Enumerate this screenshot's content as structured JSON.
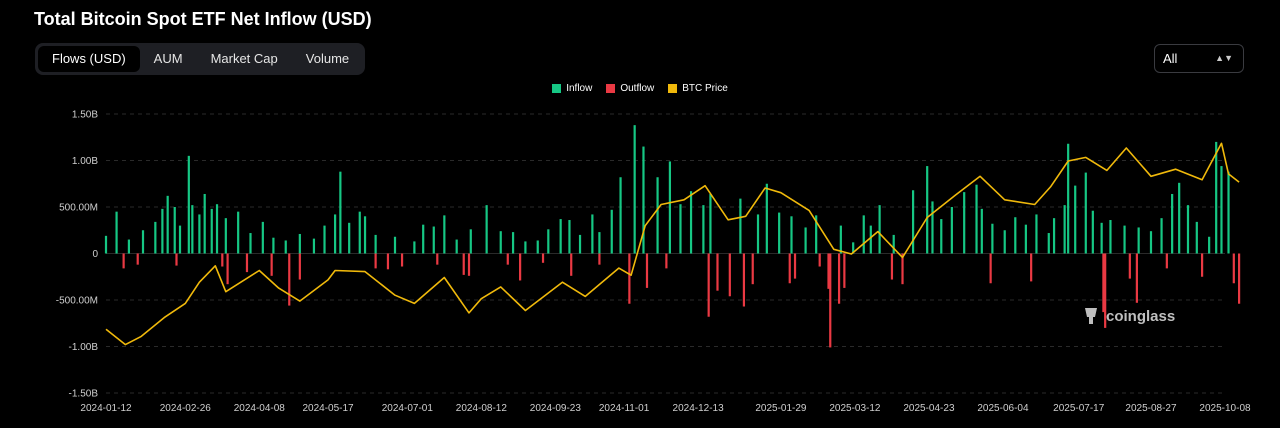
{
  "header": {
    "title": "Total Bitcoin Spot ETF Net Inflow (USD)"
  },
  "tabs": [
    {
      "label": "Flows (USD)",
      "active": true
    },
    {
      "label": "AUM",
      "active": false
    },
    {
      "label": "Market Cap",
      "active": false
    },
    {
      "label": "Volume",
      "active": false
    }
  ],
  "range_select": {
    "value": "All",
    "icon": "chevron-up-down-icon"
  },
  "watermark": {
    "text": "coinglass",
    "icon": "coinglass-logo-icon"
  },
  "colors": {
    "inflow": "#16c784",
    "outflow": "#ea3943",
    "btc_price": "#f0b90b",
    "grid": "#2a2a2a"
  },
  "chart_data": {
    "type": "bar",
    "title": "Total Bitcoin Spot ETF Net Inflow (USD)",
    "legend": [
      "Inflow",
      "Outflow",
      "BTC Price"
    ],
    "legend_placement": "top-center",
    "y_ticks": [
      "1.50B",
      "1.00B",
      "500.00M",
      "0",
      "-500.00M",
      "-1.00B",
      "-1.50B"
    ],
    "y_tick_values": [
      1500,
      1000,
      500,
      0,
      -500,
      -1000,
      -1500
    ],
    "ylim": [
      -1500,
      1500
    ],
    "y_unit": "millions USD",
    "x_ticks": [
      "2024-01-12",
      "2024-02-26",
      "2024-04-08",
      "2024-05-17",
      "2024-07-01",
      "2024-08-12",
      "2024-09-23",
      "2024-11-01",
      "2024-12-13",
      "2025-01-29",
      "2025-03-12",
      "2025-04-23",
      "2025-06-04",
      "2025-07-17",
      "2025-08-27",
      "2025-10-08"
    ],
    "grid": "horizontal dashed",
    "series": [
      {
        "name": "Inflow",
        "note": "approximate daily net inflow peaks, USD millions",
        "x": [
          "2024-01-12",
          "2024-01-18",
          "2024-01-25",
          "2024-02-02",
          "2024-02-09",
          "2024-02-13",
          "2024-02-16",
          "2024-02-20",
          "2024-02-23",
          "2024-02-28",
          "2024-03-01",
          "2024-03-05",
          "2024-03-08",
          "2024-03-12",
          "2024-03-15",
          "2024-03-20",
          "2024-03-27",
          "2024-04-03",
          "2024-04-10",
          "2024-04-16",
          "2024-04-23",
          "2024-05-01",
          "2024-05-09",
          "2024-05-15",
          "2024-05-21",
          "2024-05-24",
          "2024-05-29",
          "2024-06-04",
          "2024-06-07",
          "2024-06-13",
          "2024-06-24",
          "2024-07-05",
          "2024-07-10",
          "2024-07-16",
          "2024-07-22",
          "2024-07-29",
          "2024-08-06",
          "2024-08-15",
          "2024-08-23",
          "2024-08-30",
          "2024-09-06",
          "2024-09-13",
          "2024-09-19",
          "2024-09-26",
          "2024-10-01",
          "2024-10-07",
          "2024-10-14",
          "2024-10-18",
          "2024-10-25",
          "2024-10-30",
          "2024-11-07",
          "2024-11-12",
          "2024-11-20",
          "2024-11-27",
          "2024-12-03",
          "2024-12-09",
          "2024-12-16",
          "2024-12-20",
          "2025-01-06",
          "2025-01-16",
          "2025-01-21",
          "2025-01-28",
          "2025-02-04",
          "2025-02-12",
          "2025-02-18",
          "2025-03-04",
          "2025-03-11",
          "2025-03-17",
          "2025-03-21",
          "2025-03-26",
          "2025-04-03",
          "2025-04-14",
          "2025-04-22",
          "2025-04-25",
          "2025-04-30",
          "2025-05-06",
          "2025-05-13",
          "2025-05-20",
          "2025-05-23",
          "2025-05-29",
          "2025-06-05",
          "2025-06-11",
          "2025-06-17",
          "2025-06-23",
          "2025-06-30",
          "2025-07-03",
          "2025-07-09",
          "2025-07-11",
          "2025-07-15",
          "2025-07-21",
          "2025-07-25",
          "2025-07-30",
          "2025-08-04",
          "2025-08-12",
          "2025-08-20",
          "2025-08-27",
          "2025-09-02",
          "2025-09-08",
          "2025-09-12",
          "2025-09-17",
          "2025-09-22",
          "2025-09-29",
          "2025-10-03",
          "2025-10-06",
          "2025-10-10"
        ],
        "values": [
          190,
          450,
          150,
          250,
          340,
          480,
          620,
          500,
          300,
          1050,
          520,
          420,
          640,
          480,
          530,
          380,
          450,
          220,
          340,
          170,
          140,
          210,
          160,
          300,
          420,
          880,
          330,
          450,
          400,
          200,
          180,
          130,
          310,
          290,
          410,
          150,
          260,
          520,
          240,
          230,
          130,
          140,
          260,
          370,
          360,
          200,
          420,
          230,
          470,
          820,
          1380,
          1150,
          820,
          990,
          530,
          670,
          520,
          640,
          590,
          420,
          750,
          440,
          400,
          280,
          410,
          300,
          120,
          410,
          300,
          520,
          200,
          680,
          940,
          560,
          370,
          500,
          660,
          740,
          480,
          320,
          250,
          390,
          310,
          420,
          220,
          380,
          520,
          1180,
          730,
          870,
          460,
          330,
          360,
          300,
          280,
          240,
          380,
          640,
          760,
          520,
          340,
          180,
          1200,
          940,
          880
        ]
      },
      {
        "name": "Outflow",
        "note": "approximate daily net outflow troughs, USD millions",
        "x": [
          "2024-01-22",
          "2024-01-30",
          "2024-02-21",
          "2024-03-18",
          "2024-03-21",
          "2024-04-01",
          "2024-04-15",
          "2024-04-25",
          "2024-05-01",
          "2024-06-13",
          "2024-06-20",
          "2024-06-28",
          "2024-07-18",
          "2024-08-02",
          "2024-08-05",
          "2024-08-27",
          "2024-09-03",
          "2024-09-16",
          "2024-10-02",
          "2024-10-18",
          "2024-11-04",
          "2024-11-14",
          "2024-11-25",
          "2024-12-19",
          "2024-12-24",
          "2024-12-31",
          "2025-01-08",
          "2025-01-13",
          "2025-02-03",
          "2025-02-06",
          "2025-02-20",
          "2025-02-25",
          "2025-02-26",
          "2025-03-03",
          "2025-03-06",
          "2025-04-02",
          "2025-04-08",
          "2025-05-28",
          "2025-06-20",
          "2025-07-31",
          "2025-08-01",
          "2025-08-15",
          "2025-08-19",
          "2025-09-05",
          "2025-09-25",
          "2025-10-13",
          "2025-10-16"
        ],
        "values": [
          -160,
          -120,
          -130,
          -140,
          -330,
          -200,
          -240,
          -560,
          -280,
          -160,
          -170,
          -140,
          -120,
          -230,
          -240,
          -120,
          -290,
          -100,
          -240,
          -120,
          -540,
          -370,
          -160,
          -680,
          -400,
          -460,
          -570,
          -330,
          -320,
          -270,
          -140,
          -380,
          -1010,
          -540,
          -370,
          -280,
          -330,
          -320,
          -300,
          -630,
          -800,
          -270,
          -530,
          -160,
          -250,
          -320,
          -540
        ]
      },
      {
        "name": "BTC Price",
        "note": "line on a secondary (unlabelled) scale; points are [date, approximate USD price]",
        "x": [
          "2024-01-12",
          "2024-01-23",
          "2024-02-01",
          "2024-02-14",
          "2024-02-26",
          "2024-03-05",
          "2024-03-14",
          "2024-03-20",
          "2024-04-08",
          "2024-04-19",
          "2024-05-01",
          "2024-05-17",
          "2024-05-21",
          "2024-06-07",
          "2024-06-24",
          "2024-07-05",
          "2024-07-22",
          "2024-08-05",
          "2024-08-12",
          "2024-08-23",
          "2024-09-06",
          "2024-09-27",
          "2024-10-10",
          "2024-10-29",
          "2024-11-05",
          "2024-11-13",
          "2024-11-22",
          "2024-12-05",
          "2024-12-17",
          "2024-12-30",
          "2025-01-09",
          "2025-01-20",
          "2025-01-29",
          "2025-02-14",
          "2025-02-28",
          "2025-03-10",
          "2025-03-25",
          "2025-04-08",
          "2025-04-22",
          "2025-05-08",
          "2025-05-22",
          "2025-06-05",
          "2025-06-22",
          "2025-07-01",
          "2025-07-11",
          "2025-07-21",
          "2025-08-02",
          "2025-08-13",
          "2025-08-27",
          "2025-09-10",
          "2025-09-25",
          "2025-10-06",
          "2025-10-10",
          "2025-10-16"
        ],
        "values": [
          46000,
          39500,
          43000,
          51000,
          57000,
          66000,
          73000,
          62000,
          71000,
          63500,
          58000,
          67000,
          71000,
          70500,
          60500,
          57000,
          68000,
          53000,
          59000,
          64000,
          54000,
          66000,
          60000,
          72000,
          69000,
          90000,
          99000,
          101000,
          107000,
          92500,
          94000,
          106000,
          104000,
          96500,
          80000,
          78000,
          87500,
          76500,
          93500,
          103000,
          111000,
          101000,
          99000,
          106500,
          117500,
          119000,
          113500,
          123000,
          111000,
          114000,
          109500,
          125000,
          112000,
          108500
        ]
      }
    ]
  }
}
